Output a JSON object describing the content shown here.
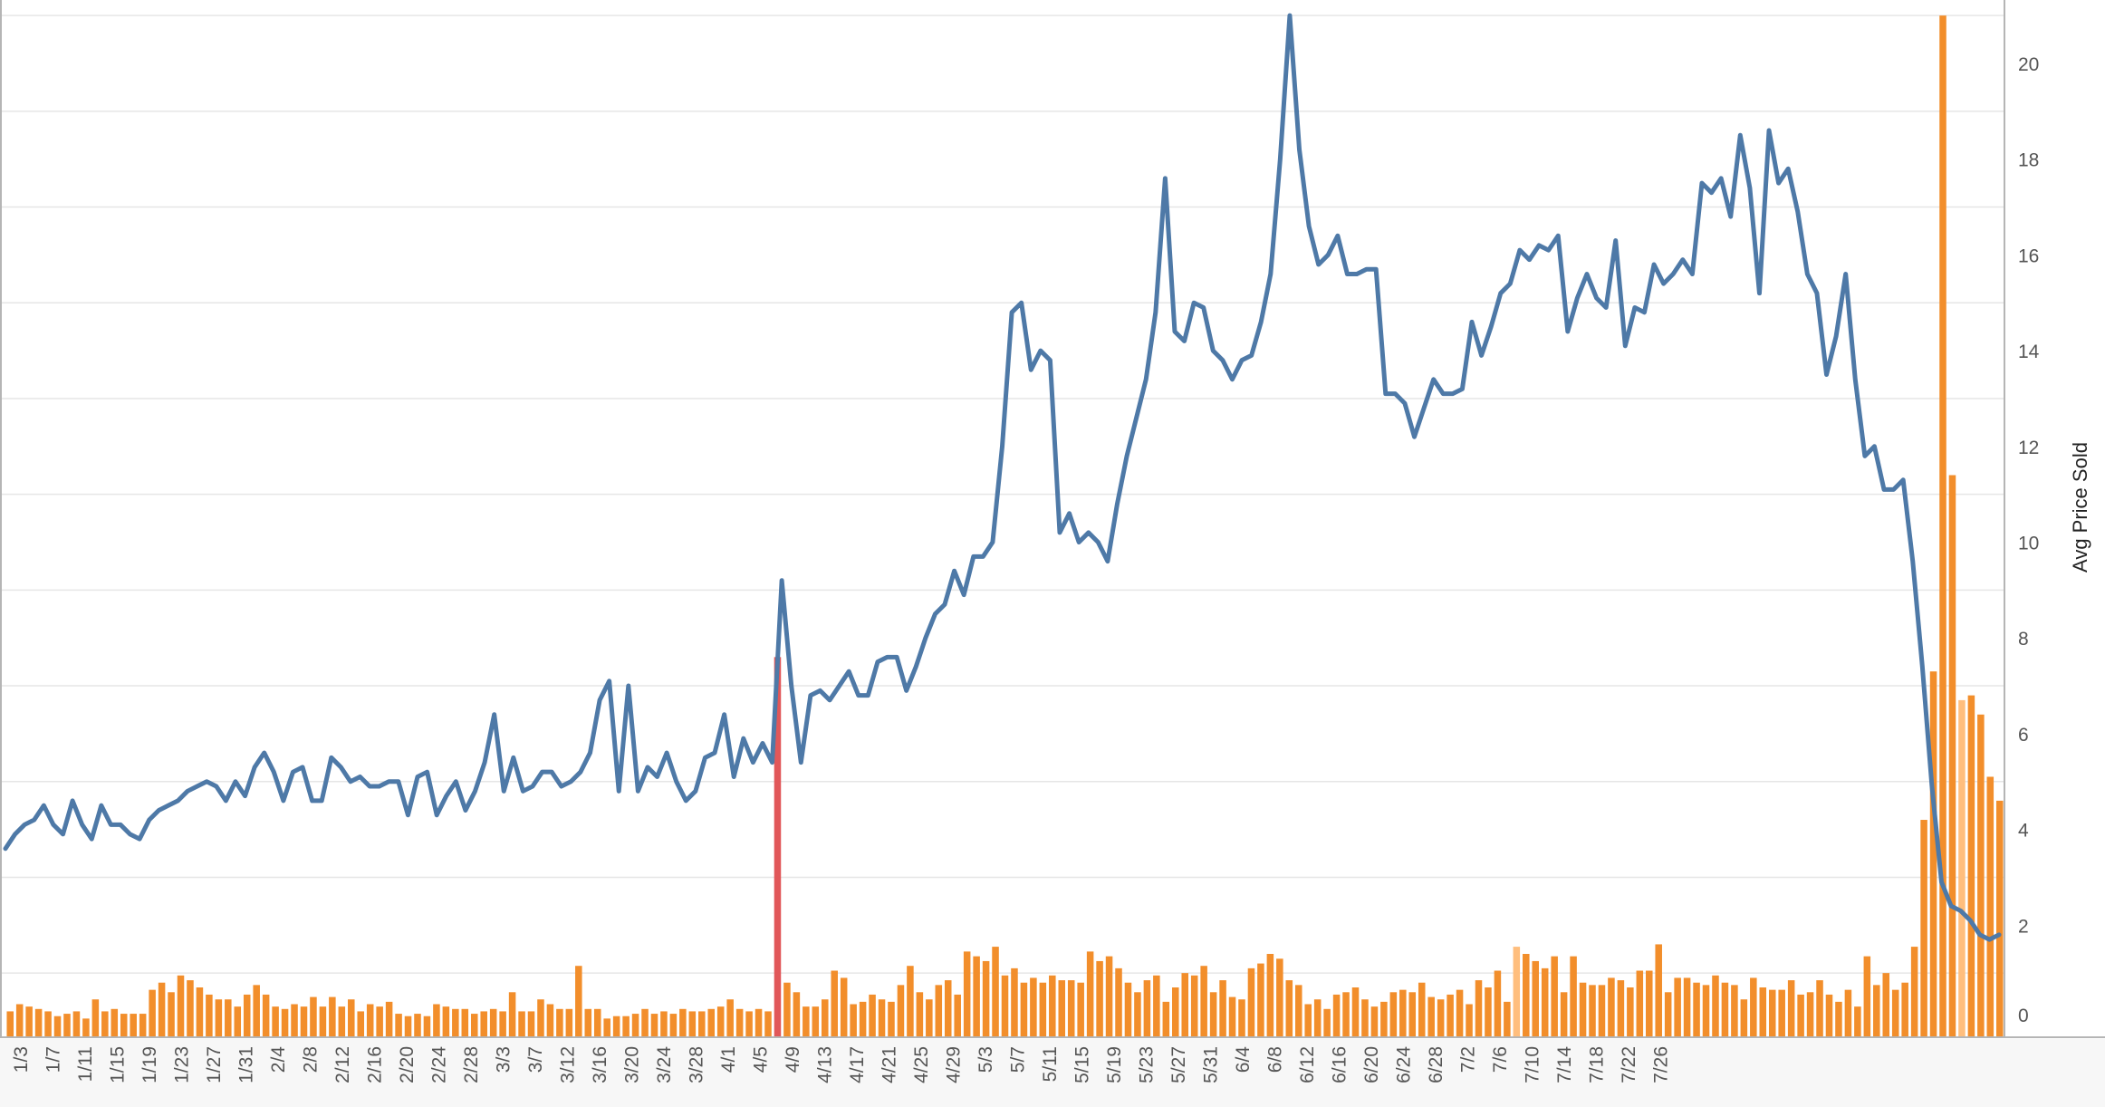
{
  "chart_data": {
    "type": "bar+line",
    "title": "",
    "xlabel": "",
    "ylabel": "Avg Price Sold",
    "y_right_ticks": [
      "0",
      "2",
      "4",
      "6",
      "8",
      "10",
      "12",
      "14",
      "16",
      "18",
      "20"
    ],
    "ylim": [
      0,
      21.5
    ],
    "x_tick_labels": [
      "1/3",
      "1/7",
      "1/11",
      "1/15",
      "1/19",
      "1/23",
      "1/27",
      "1/31",
      "2/4",
      "2/8",
      "2/12",
      "2/16",
      "2/20",
      "2/24",
      "2/28",
      "3/3",
      "3/7",
      "3/12",
      "3/16",
      "3/20",
      "3/24",
      "3/28",
      "4/1",
      "4/5",
      "4/9",
      "4/13",
      "4/17",
      "4/21",
      "4/25",
      "4/29",
      "5/3",
      "5/7",
      "5/11",
      "5/15",
      "5/19",
      "5/23",
      "5/27",
      "5/31",
      "6/4",
      "6/8",
      "6/12",
      "6/16",
      "6/20",
      "6/24",
      "6/28",
      "7/2",
      "7/6",
      "7/10",
      "7/14",
      "7/18",
      "7/22",
      "7/26"
    ],
    "series": [
      {
        "kind": "line",
        "values": [
          3.6,
          3.9,
          4.1,
          4.2,
          4.5,
          4.1,
          3.9,
          4.6,
          4.1,
          3.8,
          4.5,
          4.1,
          4.1,
          3.9,
          3.8,
          4.2,
          4.4,
          4.5,
          4.6,
          4.8,
          4.9,
          5.0,
          4.9,
          4.6,
          5.0,
          4.7,
          5.3,
          5.6,
          5.2,
          4.6,
          5.2,
          5.3,
          4.6,
          4.6,
          5.5,
          5.3,
          5.0,
          5.1,
          4.9,
          4.9,
          5.0,
          5.0,
          4.3,
          5.1,
          5.2,
          4.3,
          4.7,
          5.0,
          4.4,
          4.8,
          5.4,
          6.4,
          4.8,
          5.5,
          4.8,
          4.9,
          5.2,
          5.2,
          4.9,
          5.0,
          5.2,
          5.6,
          6.7,
          7.1,
          4.8,
          7.0,
          4.8,
          5.3,
          5.1,
          5.6,
          5.0,
          4.6,
          4.8,
          5.5,
          5.6,
          6.4,
          5.1,
          5.9,
          5.4,
          5.8,
          5.4,
          9.2,
          7.0,
          5.4,
          6.8,
          6.9,
          6.7,
          7.0,
          7.3,
          6.8,
          6.8,
          7.5,
          7.6,
          7.6,
          6.9,
          7.4,
          8.0,
          8.5,
          8.7,
          9.4,
          8.9,
          9.7,
          9.7,
          10.0,
          12.0,
          14.8,
          15.0,
          13.6,
          14.0,
          13.8,
          10.2,
          10.6,
          10.0,
          10.2,
          10.0,
          9.6,
          10.8,
          11.8,
          12.6,
          13.4,
          14.8,
          17.6,
          14.4,
          14.2,
          15.0,
          14.9,
          14.0,
          13.8,
          13.4,
          13.8,
          13.9,
          14.6,
          15.6,
          18.0,
          21.0,
          18.2,
          16.6,
          15.8,
          16.0,
          16.4,
          15.6,
          15.6,
          15.7,
          15.7,
          13.1,
          13.1,
          12.9,
          12.2,
          12.8,
          13.4,
          13.1,
          13.1,
          13.2,
          14.6,
          13.9,
          14.5,
          15.2,
          15.4,
          16.1,
          15.9,
          16.2,
          16.1,
          16.4,
          14.4,
          15.1,
          15.6,
          15.1,
          14.9,
          16.3,
          14.1,
          14.9,
          14.8,
          15.8,
          15.4,
          15.6,
          15.9,
          15.6,
          17.5,
          17.3,
          17.6,
          16.8,
          18.5,
          17.4,
          15.2,
          18.6,
          17.5,
          17.8,
          16.9,
          15.6,
          15.2,
          13.5,
          14.3,
          15.6,
          13.4,
          11.8,
          12.0,
          11.1,
          11.1,
          11.3,
          9.6,
          7.4,
          4.9,
          2.9,
          2.4,
          2.3,
          2.1,
          1.8,
          1.7,
          1.8
        ]
      },
      {
        "kind": "bar",
        "values": [
          0.2,
          0.35,
          0.3,
          0.25,
          0.2,
          0.1,
          0.15,
          0.2,
          0.05,
          0.45,
          0.2,
          0.25,
          0.15,
          0.15,
          0.15,
          0.65,
          0.8,
          0.6,
          0.95,
          0.85,
          0.7,
          0.55,
          0.45,
          0.45,
          0.3,
          0.55,
          0.75,
          0.55,
          0.3,
          0.25,
          0.35,
          0.3,
          0.5,
          0.3,
          0.5,
          0.3,
          0.45,
          0.2,
          0.35,
          0.3,
          0.4,
          0.15,
          0.1,
          0.15,
          0.1,
          0.35,
          0.3,
          0.25,
          0.25,
          0.15,
          0.2,
          0.25,
          0.2,
          0.6,
          0.2,
          0.2,
          0.45,
          0.35,
          0.25,
          0.25,
          1.15,
          0.25,
          0.25,
          0.05,
          0.1,
          0.1,
          0.15,
          0.25,
          0.15,
          0.2,
          0.15,
          0.25,
          0.2,
          0.2,
          0.25,
          0.3,
          0.45,
          0.25,
          0.2,
          0.25,
          0.2,
          7.6,
          0.8,
          0.6,
          0.3,
          0.3,
          0.45,
          1.05,
          0.9,
          0.35,
          0.4,
          0.55,
          0.45,
          0.4,
          0.75,
          1.15,
          0.6,
          0.45,
          0.75,
          0.85,
          0.55,
          1.45,
          1.35,
          1.25,
          1.55,
          0.95,
          1.1,
          0.8,
          0.9,
          0.8,
          0.95,
          0.85,
          0.85,
          0.8,
          1.45,
          1.25,
          1.35,
          1.1,
          0.8,
          0.6,
          0.85,
          0.95,
          0.4,
          0.7,
          1.0,
          0.95,
          1.15,
          0.6,
          0.85,
          0.5,
          0.45,
          1.1,
          1.2,
          1.4,
          1.3,
          0.85,
          0.75,
          0.35,
          0.45,
          0.25,
          0.55,
          0.6,
          0.7,
          0.45,
          0.3,
          0.4,
          0.6,
          0.65,
          0.6,
          0.8,
          0.5,
          0.45,
          0.55,
          0.65,
          0.35,
          0.85,
          0.7,
          1.05,
          0.4,
          1.55,
          1.4,
          1.25,
          1.1,
          1.35,
          0.6,
          1.35,
          0.8,
          0.75,
          0.75,
          0.9,
          0.85,
          0.7,
          1.05,
          1.05,
          1.6,
          0.6,
          0.9,
          0.9,
          0.8,
          0.75,
          0.95,
          0.8,
          0.75,
          0.45,
          0.9,
          0.7,
          0.65,
          0.65,
          0.85,
          0.55,
          0.6,
          0.85,
          0.55,
          0.4,
          0.65,
          0.3,
          1.35,
          0.75,
          1.0,
          0.65,
          0.8,
          1.55,
          4.2,
          7.3,
          21.0,
          11.4,
          6.7,
          6.8,
          6.4,
          5.1,
          4.6
        ]
      }
    ],
    "highlights": [
      {
        "index": 81,
        "role": "selected bar"
      },
      {
        "index": 159,
        "role": "light bar"
      },
      {
        "index": 206,
        "role": "light bar"
      }
    ],
    "colors": {
      "line": "#4e79a7",
      "bar": "#f28e2b",
      "bar_light": "#ffbe7d",
      "bar_highlight": "#e15759",
      "grid": "#e6e6e6",
      "axis": "#b5b5b5",
      "tick_text": "#555555"
    },
    "grid": true,
    "legend": "none"
  }
}
